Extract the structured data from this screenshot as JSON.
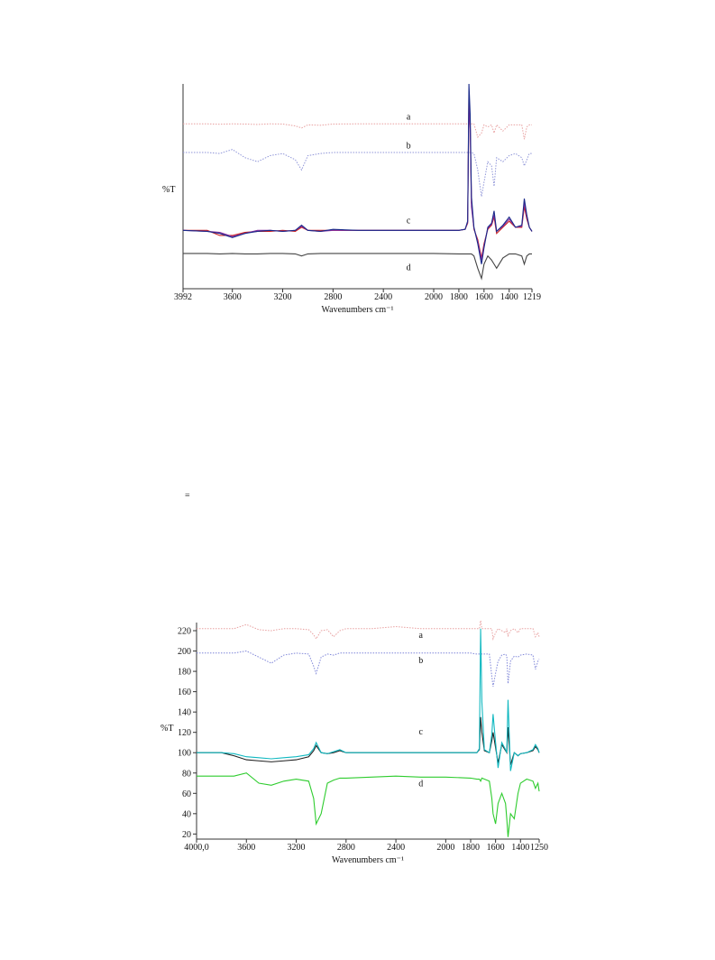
{
  "stray_text": "=",
  "chart_data": [
    {
      "type": "line",
      "y_label": "%T",
      "x_label": "Wavenumbers cm⁻¹",
      "xlim": [
        3992,
        1219
      ],
      "ylim": [
        0,
        100
      ],
      "xticks": [
        3992,
        3600,
        3200,
        2800,
        2400,
        2000,
        1800,
        1600,
        1400,
        1219
      ],
      "grid": false,
      "x": [
        3992,
        3800,
        3700,
        3600,
        3500,
        3400,
        3300,
        3200,
        3100,
        3050,
        3000,
        2900,
        2800,
        2600,
        2400,
        2200,
        2000,
        1800,
        1750,
        1730,
        1720,
        1710,
        1700,
        1680,
        1650,
        1620,
        1600,
        1570,
        1540,
        1520,
        1500,
        1450,
        1400,
        1350,
        1300,
        1280,
        1260,
        1240,
        1219
      ],
      "series": [
        {
          "color": "#e8a0a0",
          "style": "dotted",
          "values": [
            80.5,
            80.5,
            80.3,
            80.5,
            80.4,
            80.2,
            80.5,
            80.4,
            79.5,
            78.5,
            80,
            79.8,
            80.4,
            80.5,
            80.5,
            80.5,
            80.5,
            80.5,
            80.5,
            80.5,
            80.5,
            80.5,
            80.5,
            80.5,
            74,
            76,
            80,
            79,
            80,
            76,
            80,
            77,
            80,
            80,
            80,
            73,
            79,
            80,
            80
          ]
        },
        {
          "color": "#8f95d8",
          "style": "dotted",
          "values": [
            66.5,
            66.5,
            66,
            68,
            64,
            62,
            65,
            66,
            63,
            58,
            65,
            66,
            66.5,
            66.5,
            66.5,
            66.5,
            66.5,
            66.5,
            66.5,
            66.5,
            66.5,
            66.5,
            66.5,
            66,
            58,
            45,
            52,
            62,
            60,
            50,
            64,
            62,
            65,
            66,
            64,
            60,
            63,
            66,
            66
          ]
        },
        {
          "color": "#cc2020",
          "style": "solid",
          "values": [
            28.5,
            28.5,
            26,
            26,
            27.5,
            28,
            28,
            28.5,
            28,
            30,
            28.5,
            28.5,
            28.5,
            28.5,
            28.5,
            28.5,
            28.5,
            28.5,
            29,
            32,
            95,
            80,
            42,
            29,
            24,
            15,
            22,
            29,
            31,
            35,
            27,
            30,
            33,
            30,
            30,
            40,
            34,
            30,
            28
          ]
        },
        {
          "color": "#8a2fa0",
          "style": "solid",
          "values": [
            28.5,
            28,
            27.5,
            25.5,
            27,
            28.5,
            28.5,
            28,
            28.5,
            30.5,
            28.5,
            28,
            28.5,
            28.5,
            28.5,
            28.5,
            28.5,
            28.5,
            29,
            32.5,
            90,
            78,
            40,
            29.5,
            23,
            14,
            21,
            29.5,
            31.5,
            36,
            28,
            30.5,
            34,
            30,
            30.5,
            42,
            35,
            30,
            28
          ]
        },
        {
          "color": "#1a2a8a",
          "style": "solid",
          "values": [
            28.5,
            28,
            27,
            25,
            27,
            28,
            28.5,
            28,
            28.5,
            31,
            28.5,
            28,
            29,
            28.5,
            28.5,
            28.5,
            28.5,
            28.5,
            29,
            33,
            100,
            85,
            45,
            30,
            22,
            12,
            20,
            30,
            32,
            38,
            28,
            31,
            35,
            30,
            31,
            44,
            36,
            30,
            28
          ]
        },
        {
          "color": "#444444",
          "style": "solid",
          "values": [
            17.2,
            17.2,
            17,
            17.2,
            17,
            17,
            17.2,
            17.2,
            17,
            16,
            17,
            17.2,
            17.2,
            17.2,
            17.2,
            17.2,
            17.2,
            17,
            17,
            17,
            17,
            17,
            17,
            16,
            10,
            5,
            12,
            16,
            14,
            12,
            10,
            15,
            17,
            17,
            16,
            12,
            16,
            17,
            17
          ]
        }
      ],
      "annotations": [
        {
          "text": "a",
          "x": 2200,
          "y": 82.5
        },
        {
          "text": "b",
          "x": 2200,
          "y": 68.5
        },
        {
          "text": "c",
          "x": 2200,
          "y": 32
        },
        {
          "text": "d",
          "x": 2200,
          "y": 9
        }
      ]
    },
    {
      "type": "line",
      "y_label": "%T",
      "x_label": "Wavenumbers cm⁻¹",
      "xlim": [
        4000,
        1250
      ],
      "ylim": [
        15,
        228
      ],
      "xticks": [
        {
          "value": 4000,
          "label": "4000,0"
        },
        3600,
        3200,
        2800,
        2400,
        2000,
        1800,
        1600,
        1400,
        1250
      ],
      "yticks": [
        20,
        40,
        60,
        80,
        100,
        120,
        140,
        160,
        180,
        200,
        220
      ],
      "grid": false,
      "x": [
        4000,
        3800,
        3700,
        3600,
        3500,
        3400,
        3300,
        3200,
        3100,
        3060,
        3040,
        3000,
        2950,
        2900,
        2850,
        2800,
        2600,
        2400,
        2200,
        2000,
        1800,
        1750,
        1730,
        1720,
        1710,
        1690,
        1650,
        1630,
        1620,
        1600,
        1580,
        1550,
        1520,
        1510,
        1500,
        1480,
        1450,
        1420,
        1400,
        1350,
        1300,
        1280,
        1260,
        1250
      ],
      "series": [
        {
          "color": "#e8a0a0",
          "style": "dotted",
          "values": [
            222,
            222,
            222,
            226,
            221,
            220,
            222,
            222,
            221,
            216,
            212,
            220,
            221,
            214,
            220,
            222,
            222,
            224,
            222,
            222,
            222,
            222,
            222,
            230,
            222,
            222,
            222,
            222,
            212,
            218,
            222,
            220,
            218,
            222,
            215,
            220,
            222,
            218,
            222,
            222,
            222,
            214,
            218,
            214
          ]
        },
        {
          "color": "#7f86d8",
          "style": "dotted",
          "values": [
            198,
            198,
            198,
            200,
            194,
            188,
            196,
            198,
            197,
            185,
            178,
            194,
            197,
            196,
            198,
            198,
            198,
            198,
            198,
            198,
            198,
            197,
            197,
            197,
            197,
            197,
            197,
            175,
            165,
            178,
            190,
            196,
            197,
            195,
            168,
            190,
            195,
            194,
            196,
            197,
            196,
            182,
            190,
            192
          ]
        },
        {
          "color": "#222222",
          "style": "solid",
          "values": [
            100,
            100,
            97,
            93,
            92,
            91,
            92,
            93,
            96,
            102,
            107,
            100,
            99,
            100,
            102,
            100,
            100,
            100,
            100,
            100,
            100,
            100,
            103,
            135,
            120,
            102,
            100,
            112,
            120,
            105,
            90,
            108,
            102,
            100,
            125,
            88,
            100,
            97,
            99,
            100,
            102,
            106,
            103,
            100
          ]
        },
        {
          "color": "#10b8c0",
          "style": "solid",
          "values": [
            100,
            100,
            99,
            96,
            95,
            94,
            95,
            96,
            98,
            104,
            110,
            100,
            99,
            101,
            103,
            100,
            100,
            100,
            100,
            100,
            100,
            100,
            104,
            222,
            150,
            103,
            100,
            118,
            138,
            110,
            85,
            110,
            103,
            100,
            152,
            82,
            100,
            97,
            99,
            100,
            103,
            108,
            104,
            100
          ]
        },
        {
          "color": "#2ecc2e",
          "style": "solid",
          "values": [
            77,
            77,
            77,
            80,
            70,
            68,
            72,
            74,
            72,
            55,
            30,
            40,
            70,
            73,
            75,
            75,
            76,
            77,
            76,
            76,
            75,
            74,
            74,
            72,
            75,
            74,
            72,
            55,
            40,
            30,
            50,
            60,
            50,
            35,
            17,
            40,
            35,
            60,
            70,
            74,
            72,
            65,
            70,
            62
          ]
        }
      ],
      "annotations": [
        {
          "text": "a",
          "x": 2200,
          "y": 213
        },
        {
          "text": "b",
          "x": 2200,
          "y": 188
        },
        {
          "text": "c",
          "x": 2200,
          "y": 118
        },
        {
          "text": "d",
          "x": 2200,
          "y": 67
        }
      ]
    }
  ]
}
